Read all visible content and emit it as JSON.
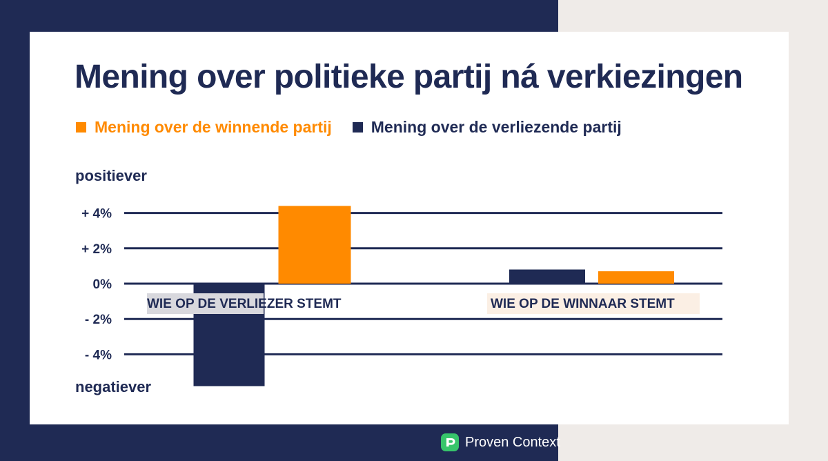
{
  "page": {
    "title": "Mening over politieke partij ná verkiezingen",
    "brand": "Proven Context"
  },
  "theme": {
    "navy": "#1f2a54",
    "orange": "#ff8a00",
    "cream": "#efebe8",
    "white": "#ffffff"
  },
  "legend": {
    "items": [
      {
        "label": "Mening over de winnende partij",
        "color": "#ff8a00"
      },
      {
        "label": "Mening over de verliezende partij",
        "color": "#1f2a54"
      }
    ]
  },
  "chart_data": {
    "type": "bar",
    "title": "Mening over politieke partij ná verkiezingen",
    "categories": [
      "WIE OP DE VERLIEZER STEMT",
      "WIE OP DE WINNAAR STEMT"
    ],
    "series": [
      {
        "name": "Mening over de verliezende partij",
        "color": "#1f2a54",
        "values": [
          -5.8,
          0.8
        ]
      },
      {
        "name": "Mening over de winnende partij",
        "color": "#ff8a00",
        "values": [
          4.4,
          0.7
        ]
      }
    ],
    "y_ticks": [
      4,
      2,
      0,
      -2,
      -4
    ],
    "y_tick_labels": [
      "+ 4%",
      "+ 2%",
      "0%",
      "- 2%",
      "- 4%"
    ],
    "y_top_label": "positiever",
    "y_bottom_label": "negatiever",
    "ylim": [
      -6,
      4.5
    ],
    "grid": true,
    "legend_position": "top-left"
  }
}
